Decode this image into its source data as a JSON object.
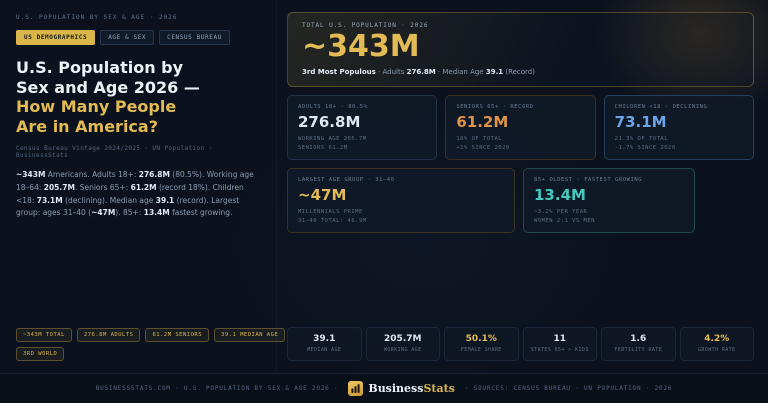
{
  "header": {
    "kicker": "U.S. POPULATION BY SEX & AGE · 2026"
  },
  "tabs": [
    {
      "label": "US DEMOGRAPHICS",
      "active": true
    },
    {
      "label": "AGE & SEX",
      "active": false
    },
    {
      "label": "CENSUS BUREAU",
      "active": false
    }
  ],
  "headline": {
    "line1": "U.S. Population by",
    "line2": "Sex and Age 2026 —",
    "line3": "How Many People",
    "line4": "Are in America?"
  },
  "source_line": "Census Bureau Vintage 2024/2025 · UN Population · BusinessStats",
  "summary": [
    {
      "t": "~343M",
      "b": true
    },
    {
      "t": " Americans. Adults 18+: "
    },
    {
      "t": "276.8M",
      "b": true
    },
    {
      "t": " (80.5%). Working age 18–64: "
    },
    {
      "t": "205.7M",
      "b": true
    },
    {
      "t": ". Seniors 65+: "
    },
    {
      "t": "61.2M",
      "b": true
    },
    {
      "t": " (record 18%). Children <18: "
    },
    {
      "t": "73.1M",
      "b": true
    },
    {
      "t": " (declining). Median age "
    },
    {
      "t": "39.1",
      "b": true
    },
    {
      "t": " (record). Largest group: ages 31–40 ("
    },
    {
      "t": "~47M",
      "b": true
    },
    {
      "t": "). 85+: "
    },
    {
      "t": "13.4M",
      "b": true
    },
    {
      "t": " fastest growing."
    }
  ],
  "pills_row1": [
    "~343M TOTAL",
    "276.8M ADULTS",
    "61.2M SENIORS",
    "39.1 MEDIAN AGE"
  ],
  "pills_row2": [
    "3RD WORLD"
  ],
  "hero": {
    "label": "TOTAL U.S. POPULATION · 2026",
    "value": "~343M",
    "sub": [
      {
        "t": "3rd Most Populous",
        "b": true
      },
      {
        "t": " · Adults "
      },
      {
        "t": "276.8M",
        "b": true
      },
      {
        "t": " · Median Age "
      },
      {
        "t": "39.1",
        "b": true
      },
      {
        "t": " (Record)"
      }
    ]
  },
  "cards": [
    {
      "label": "ADULTS 18+ · 80.5%",
      "value": "276.8M",
      "color": "#dfe7f0",
      "border": "#223049",
      "sub1": "WORKING AGE 205.7M",
      "sub2": "SENIORS 61.2M"
    },
    {
      "label": "SENIORS 65+ · RECORD",
      "value": "61.2M",
      "color": "#e0944a",
      "border": "#3a2f1f",
      "sub1": "18% OF TOTAL",
      "sub2": "+1% SINCE 2020"
    },
    {
      "label": "CHILDREN <18 · DECLINING",
      "value": "73.1M",
      "color": "#6aa3e8",
      "border": "#24405f",
      "sub1": "21.3% OF TOTAL",
      "sub2": "-1.7% SINCE 2020"
    },
    {
      "label": "LARGEST AGE GROUP · 31–40",
      "value": "~47M",
      "color": "#e3bb54",
      "border": "#3a3320",
      "sub1": "MILLENNIALS PRIME",
      "sub2": "31–40 TOTAL: 46.9M"
    },
    {
      "label": "85+ OLDEST · FASTEST GROWING",
      "value": "13.4M",
      "color": "#45c8bd",
      "border": "#1f4a47",
      "sub1": "~3.2% PER YEAR",
      "sub2": "WOMEN 2:1 VS MEN"
    }
  ],
  "mini_stats": [
    {
      "value": "39.1",
      "label": "MEDIAN AGE",
      "color": "#dfe7f0"
    },
    {
      "value": "205.7M",
      "label": "WORKING AGE",
      "color": "#dfe7f0"
    },
    {
      "value": "50.1%",
      "label": "FEMALE SHARE",
      "color": "#e3bb54"
    },
    {
      "value": "11",
      "label": "STATES 65+ > KIDS",
      "color": "#dfe7f0"
    },
    {
      "value": "1.6",
      "label": "FERTILITY RATE",
      "color": "#dfe7f0"
    },
    {
      "value": "4.2%",
      "label": "GROWTH RATE",
      "color": "#e3bb54"
    }
  ],
  "footer": {
    "left": "BUSINESSSTATS.COM · U.S. POPULATION BY SEX & AGE 2026 ·",
    "brand_primary": "Business",
    "brand_accent": "Stats",
    "right": "· SOURCES: CENSUS BUREAU · UN POPULATION · 2026"
  },
  "colors": {
    "accent_gold": "#e3bb54",
    "background": "#0b121e"
  }
}
